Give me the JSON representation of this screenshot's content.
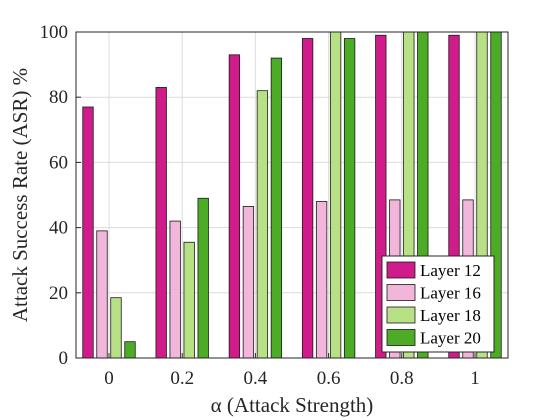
{
  "chart_data": {
    "type": "bar",
    "xlabel": "α (Attack Strength)",
    "ylabel": "Attack Success Rate (ASR) %",
    "categories": [
      "0",
      "0.2",
      "0.4",
      "0.6",
      "0.8",
      "1"
    ],
    "ylim": [
      0,
      100
    ],
    "yticks": [
      "0",
      "20",
      "40",
      "60",
      "80",
      "100"
    ],
    "grid": true,
    "legend_position": "bottom-right",
    "series": [
      {
        "name": "Layer 12",
        "color": "#d01c8b",
        "values": [
          77,
          83,
          93,
          98,
          99,
          99
        ]
      },
      {
        "name": "Layer 16",
        "color": "#f1b6da",
        "values": [
          39,
          42,
          46.5,
          48,
          48.5,
          48.5
        ]
      },
      {
        "name": "Layer 18",
        "color": "#b8e186",
        "values": [
          18.5,
          35.5,
          82,
          100,
          100,
          100
        ]
      },
      {
        "name": "Layer 20",
        "color": "#4dac26",
        "values": [
          5,
          49,
          92,
          98,
          100,
          100
        ]
      }
    ]
  }
}
